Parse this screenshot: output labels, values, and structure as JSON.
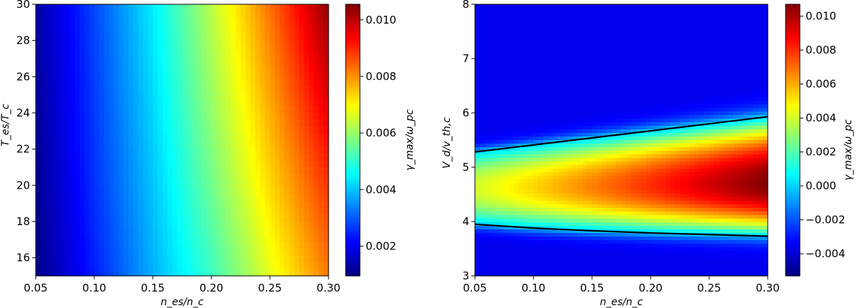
{
  "panels": [
    {
      "xlabel": "n_es/n_c",
      "ylabel": "T_es/T_c",
      "cbar_label": "γ_max/ω_pc"
    },
    {
      "xlabel": "n_es/n_c",
      "ylabel": "V_d/v_th,c",
      "cbar_label": "γ_max/ω_pc"
    }
  ],
  "chart_data": [
    {
      "type": "heatmap",
      "colormap": "jet",
      "xlabel": "n_es/n_c",
      "ylabel": "T_es/T_c",
      "cbar_label": "γ_max/ω_pc",
      "xlim": [
        0.05,
        0.3
      ],
      "ylim": [
        15,
        30
      ],
      "clim": [
        0.00095,
        0.01055
      ],
      "x_ticks": [
        "0.05",
        "0.10",
        "0.15",
        "0.20",
        "0.25",
        "0.30"
      ],
      "y_ticks": [
        "16",
        "18",
        "20",
        "22",
        "24",
        "26",
        "28",
        "30"
      ],
      "cbar_ticks": [
        "0.002",
        "0.004",
        "0.006",
        "0.008",
        "0.010"
      ],
      "x": [
        0.05,
        0.1,
        0.15,
        0.2,
        0.25,
        0.3
      ],
      "y": [
        15,
        20,
        25,
        30
      ],
      "z": [
        [
          0.001,
          0.0024,
          0.0038,
          0.0051,
          0.0067,
          0.0082
        ],
        [
          0.0011,
          0.0026,
          0.004,
          0.0056,
          0.0073,
          0.0089
        ],
        [
          0.0012,
          0.0027,
          0.0042,
          0.006,
          0.0078,
          0.0097
        ],
        [
          0.0013,
          0.0028,
          0.0044,
          0.0063,
          0.0083,
          0.0104
        ]
      ]
    },
    {
      "type": "heatmap",
      "colormap": "jet",
      "xlabel": "n_es/n_c",
      "ylabel": "V_d/v_th,c",
      "cbar_label": "γ_max/ω_pc",
      "xlim": [
        0.05,
        0.3
      ],
      "ylim": [
        3,
        8
      ],
      "clim": [
        -0.0053,
        0.0107
      ],
      "x_ticks": [
        "0.05",
        "0.10",
        "0.15",
        "0.20",
        "0.25",
        "0.30"
      ],
      "y_ticks": [
        "3",
        "4",
        "5",
        "6",
        "7",
        "8"
      ],
      "cbar_ticks": [
        "−0.004",
        "−0.002",
        "0.000",
        "0.002",
        "0.004",
        "0.006",
        "0.008",
        "0.010"
      ],
      "ridge_center": [
        [
          0.05,
          4.62
        ],
        [
          0.3,
          4.7
        ]
      ],
      "peak_value": [
        [
          0.05,
          0.004
        ],
        [
          0.3,
          0.0107
        ]
      ],
      "background_value": -0.0036,
      "zero_contours": [
        {
          "x": [
            0.05,
            0.3
          ],
          "y": [
            5.28,
            5.93
          ]
        },
        {
          "x": [
            0.05,
            0.1,
            0.15,
            0.2,
            0.25,
            0.3
          ],
          "y": [
            3.95,
            3.88,
            3.83,
            3.79,
            3.76,
            3.73
          ]
        }
      ]
    }
  ]
}
